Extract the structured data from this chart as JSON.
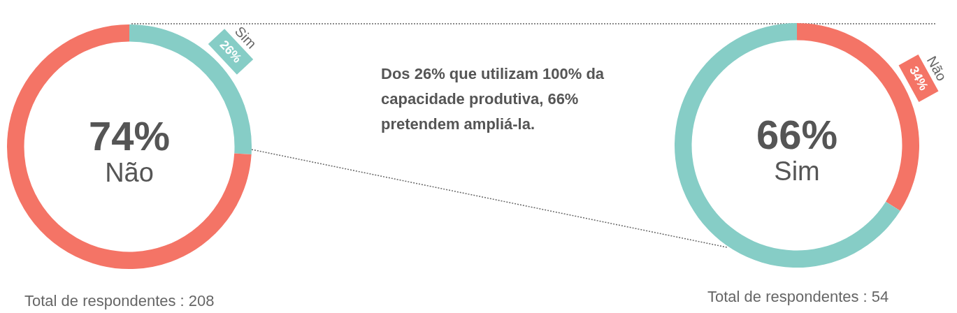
{
  "chart_data": [
    {
      "type": "donut",
      "categories": [
        "Sim",
        "Não"
      ],
      "values": [
        26,
        74
      ],
      "colors": [
        "#86cdc6",
        "#f47466"
      ],
      "value_labels": [
        "26%",
        "74%"
      ],
      "legend": false,
      "annotations": [
        "Total de respondentes : 208"
      ]
    },
    {
      "type": "other",
      "annotations": [
        "Dos 26% que utilizam 100% da capacidade produtiva, 66% pretendem ampliá-la."
      ]
    },
    {
      "type": "donut",
      "categories": [
        "Não",
        "Sim"
      ],
      "values": [
        34,
        66
      ],
      "colors": [
        "#f47466",
        "#86cdc6"
      ],
      "value_labels": [
        "34%",
        "66%"
      ],
      "legend": false,
      "annotations": [
        "Total de respondentes : 54"
      ]
    }
  ]
}
